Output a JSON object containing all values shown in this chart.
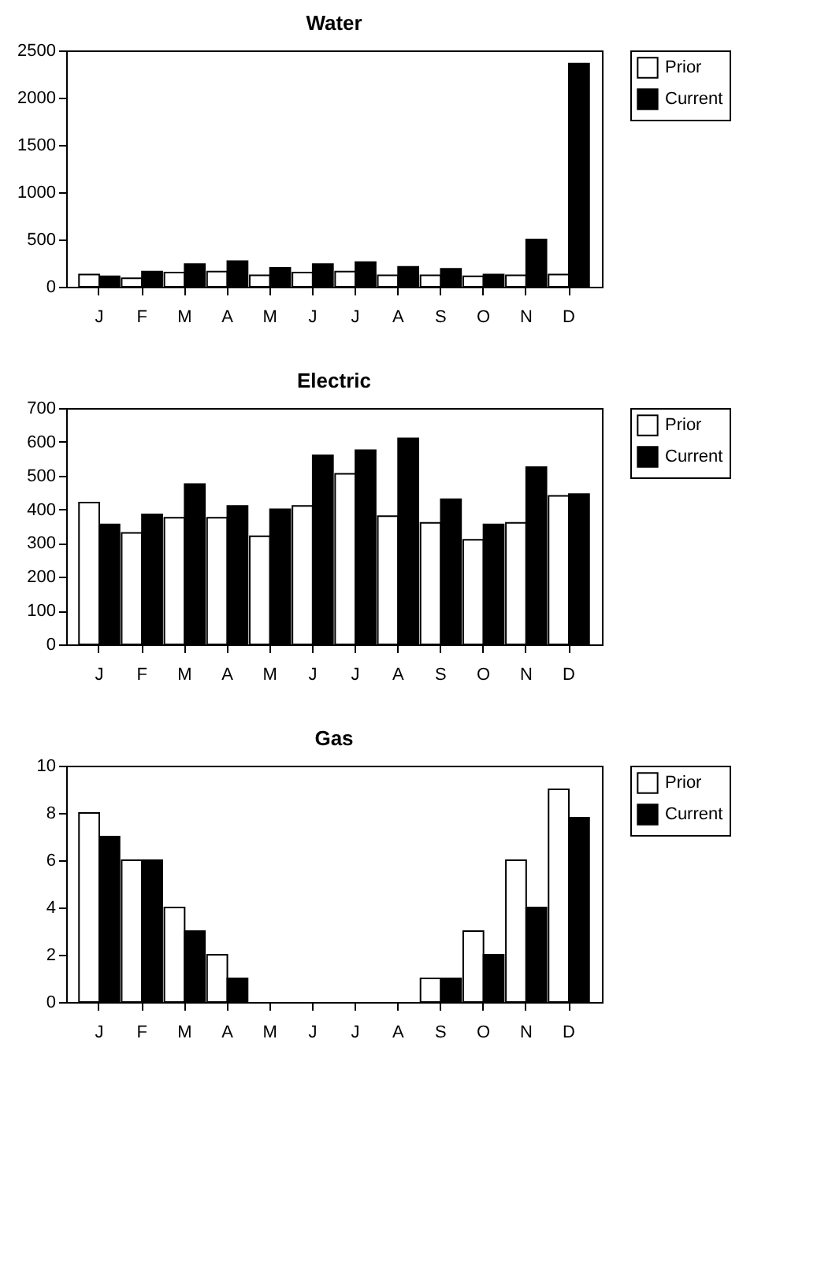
{
  "chart_data": [
    {
      "type": "bar",
      "title": "Water",
      "categories": [
        "J",
        "F",
        "M",
        "A",
        "M",
        "J",
        "J",
        "A",
        "S",
        "O",
        "N",
        "D"
      ],
      "ylim": [
        0,
        2500
      ],
      "yticks": [
        0,
        500,
        1000,
        1500,
        2000,
        2500
      ],
      "grid": false,
      "legend": "top right",
      "series": [
        {
          "name": "Prior",
          "color": "#ffffff",
          "values": [
            130,
            90,
            150,
            160,
            120,
            150,
            160,
            120,
            120,
            110,
            120,
            130
          ]
        },
        {
          "name": "Current",
          "color": "#000000",
          "values": [
            110,
            160,
            240,
            270,
            200,
            240,
            260,
            210,
            190,
            130,
            500,
            2360
          ]
        }
      ]
    },
    {
      "type": "bar",
      "title": "Electric",
      "categories": [
        "J",
        "F",
        "M",
        "A",
        "M",
        "J",
        "J",
        "A",
        "S",
        "O",
        "N",
        "D"
      ],
      "ylim": [
        0,
        700
      ],
      "yticks": [
        0,
        100,
        200,
        300,
        400,
        500,
        600,
        700
      ],
      "grid": false,
      "legend": "top right",
      "series": [
        {
          "name": "Prior",
          "color": "#ffffff",
          "values": [
            420,
            330,
            375,
            375,
            320,
            410,
            505,
            380,
            360,
            310,
            360,
            440
          ]
        },
        {
          "name": "Current",
          "color": "#000000",
          "values": [
            355,
            385,
            475,
            410,
            400,
            560,
            575,
            610,
            430,
            355,
            525,
            445
          ]
        }
      ]
    },
    {
      "type": "bar",
      "title": "Gas",
      "categories": [
        "J",
        "F",
        "M",
        "A",
        "M",
        "J",
        "J",
        "A",
        "S",
        "O",
        "N",
        "D"
      ],
      "ylim": [
        0,
        10
      ],
      "yticks": [
        0,
        2,
        4,
        6,
        8,
        10
      ],
      "grid": false,
      "legend": "top right",
      "series": [
        {
          "name": "Prior",
          "color": "#ffffff",
          "values": [
            8,
            6,
            4,
            2,
            0,
            0,
            0,
            0,
            1,
            3,
            6,
            9
          ]
        },
        {
          "name": "Current",
          "color": "#000000",
          "values": [
            7,
            6,
            3,
            1,
            0,
            0,
            0,
            0,
            1,
            2,
            4,
            7.8
          ]
        }
      ]
    }
  ]
}
